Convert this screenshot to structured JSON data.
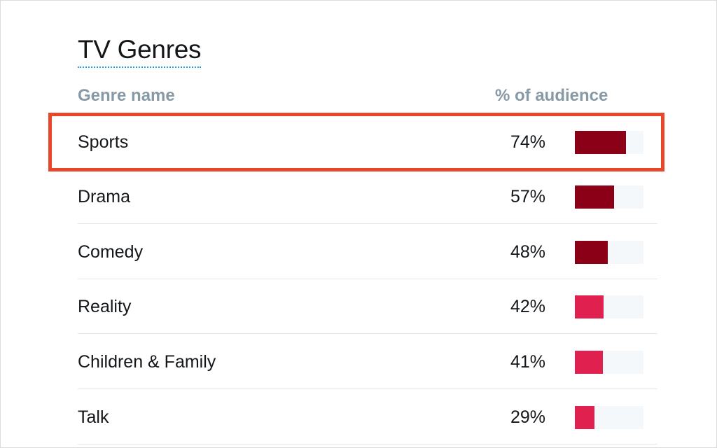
{
  "title": "TV Genres",
  "table": {
    "header_name": "Genre name",
    "header_pct": "% of audience",
    "rows": [
      {
        "name": "Sports",
        "pct_label": "74%",
        "value": 0.74,
        "color": "#8b0016"
      },
      {
        "name": "Drama",
        "pct_label": "57%",
        "value": 0.57,
        "color": "#8b0016"
      },
      {
        "name": "Comedy",
        "pct_label": "48%",
        "value": 0.48,
        "color": "#8b0016"
      },
      {
        "name": "Reality",
        "pct_label": "42%",
        "value": 0.42,
        "color": "#e0204e"
      },
      {
        "name": "Children & Family",
        "pct_label": "41%",
        "value": 0.41,
        "color": "#e0204e"
      },
      {
        "name": "Talk",
        "pct_label": "29%",
        "value": 0.29,
        "color": "#e0204e"
      }
    ]
  },
  "highlight_color": "#e8472a",
  "accent_color": "#1da1f2"
}
